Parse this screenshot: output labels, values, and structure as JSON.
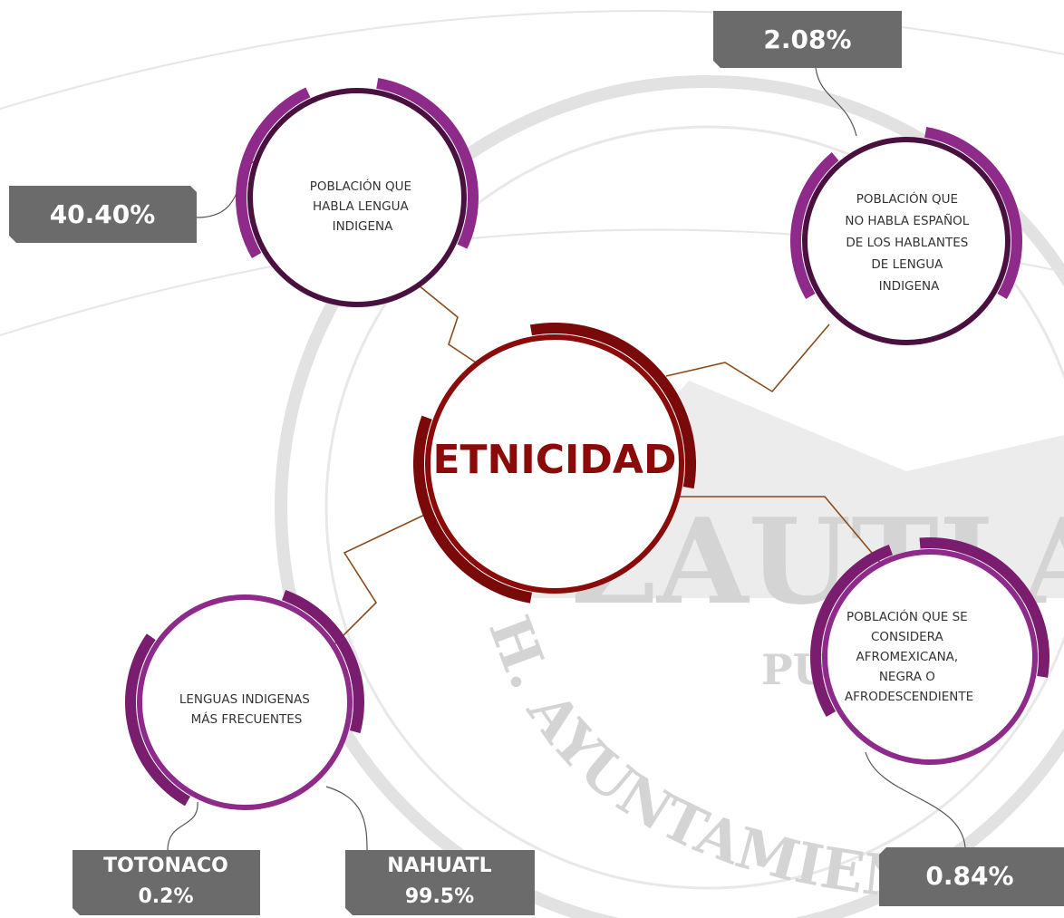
{
  "center": {
    "title": "ETNICIDAD"
  },
  "nodes": [
    {
      "label": [
        "POBLACIÓN QUE",
        "HABLA LENGUA",
        "INDIGENA"
      ],
      "value": "40.40%"
    },
    {
      "label": [
        "POBLACIÓN QUE",
        "NO HABLA ESPAÑOL",
        "DE LOS HABLANTES",
        "DE LENGUA",
        "INDIGENA"
      ],
      "value": "2.08%"
    },
    {
      "label": [
        "POBLACIÓN QUE SE",
        "CONSIDERA",
        "AFROMEXICANA,",
        "NEGRA O",
        "AFRODESCENDIENTE"
      ],
      "value": "0.84%"
    },
    {
      "label": [
        "LENGUAS INDIGENAS",
        "MÁS FRECUENTES"
      ],
      "languages": [
        {
          "name": "TOTONACO",
          "value": "0.2%"
        },
        {
          "name": "NAHUATL",
          "value": "99.5%"
        }
      ]
    }
  ],
  "watermark": {
    "name": "ZAUTLA",
    "state": "PUE",
    "arc_text": "H. AYUNTAMIEN"
  }
}
